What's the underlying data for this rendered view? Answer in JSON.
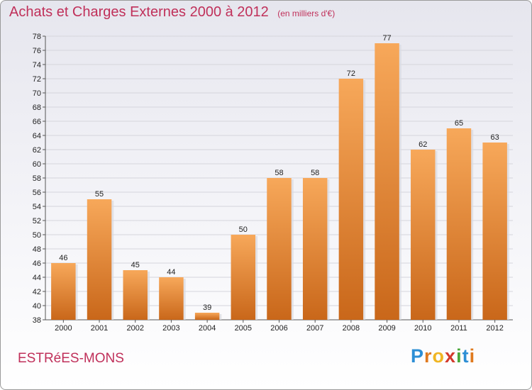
{
  "title": "Achats et Charges Externes 2000 à 2012",
  "unit_note": "(en milliers d'€)",
  "place": "ESTRéES-MONS",
  "brand": {
    "letters": [
      "P",
      "r",
      "o",
      "x",
      "i",
      "t",
      "i"
    ],
    "colors": [
      "#2d8fd5",
      "#e07a1f",
      "#f0b623",
      "#d33a2c",
      "#4aa83b",
      "#2d8fd5",
      "#e07a1f"
    ]
  },
  "colors": {
    "bar_top": "#f7a85a",
    "bar_bottom": "#c9671a",
    "grid": "#d5d5dc",
    "axis": "#555555",
    "title": "#c0305a"
  },
  "chart_data": {
    "type": "bar",
    "title": "Achats et Charges Externes 2000 à 2012",
    "categories": [
      "2000",
      "2001",
      "2002",
      "2003",
      "2004",
      "2005",
      "2006",
      "2007",
      "2008",
      "2009",
      "2010",
      "2011",
      "2012"
    ],
    "values": [
      46,
      55,
      45,
      44,
      39,
      50,
      58,
      58,
      72,
      77,
      62,
      65,
      63
    ],
    "ylim": [
      38,
      78
    ],
    "ytick_step": 2,
    "grid": true,
    "legend": "none",
    "xlabel": "",
    "ylabel": ""
  }
}
